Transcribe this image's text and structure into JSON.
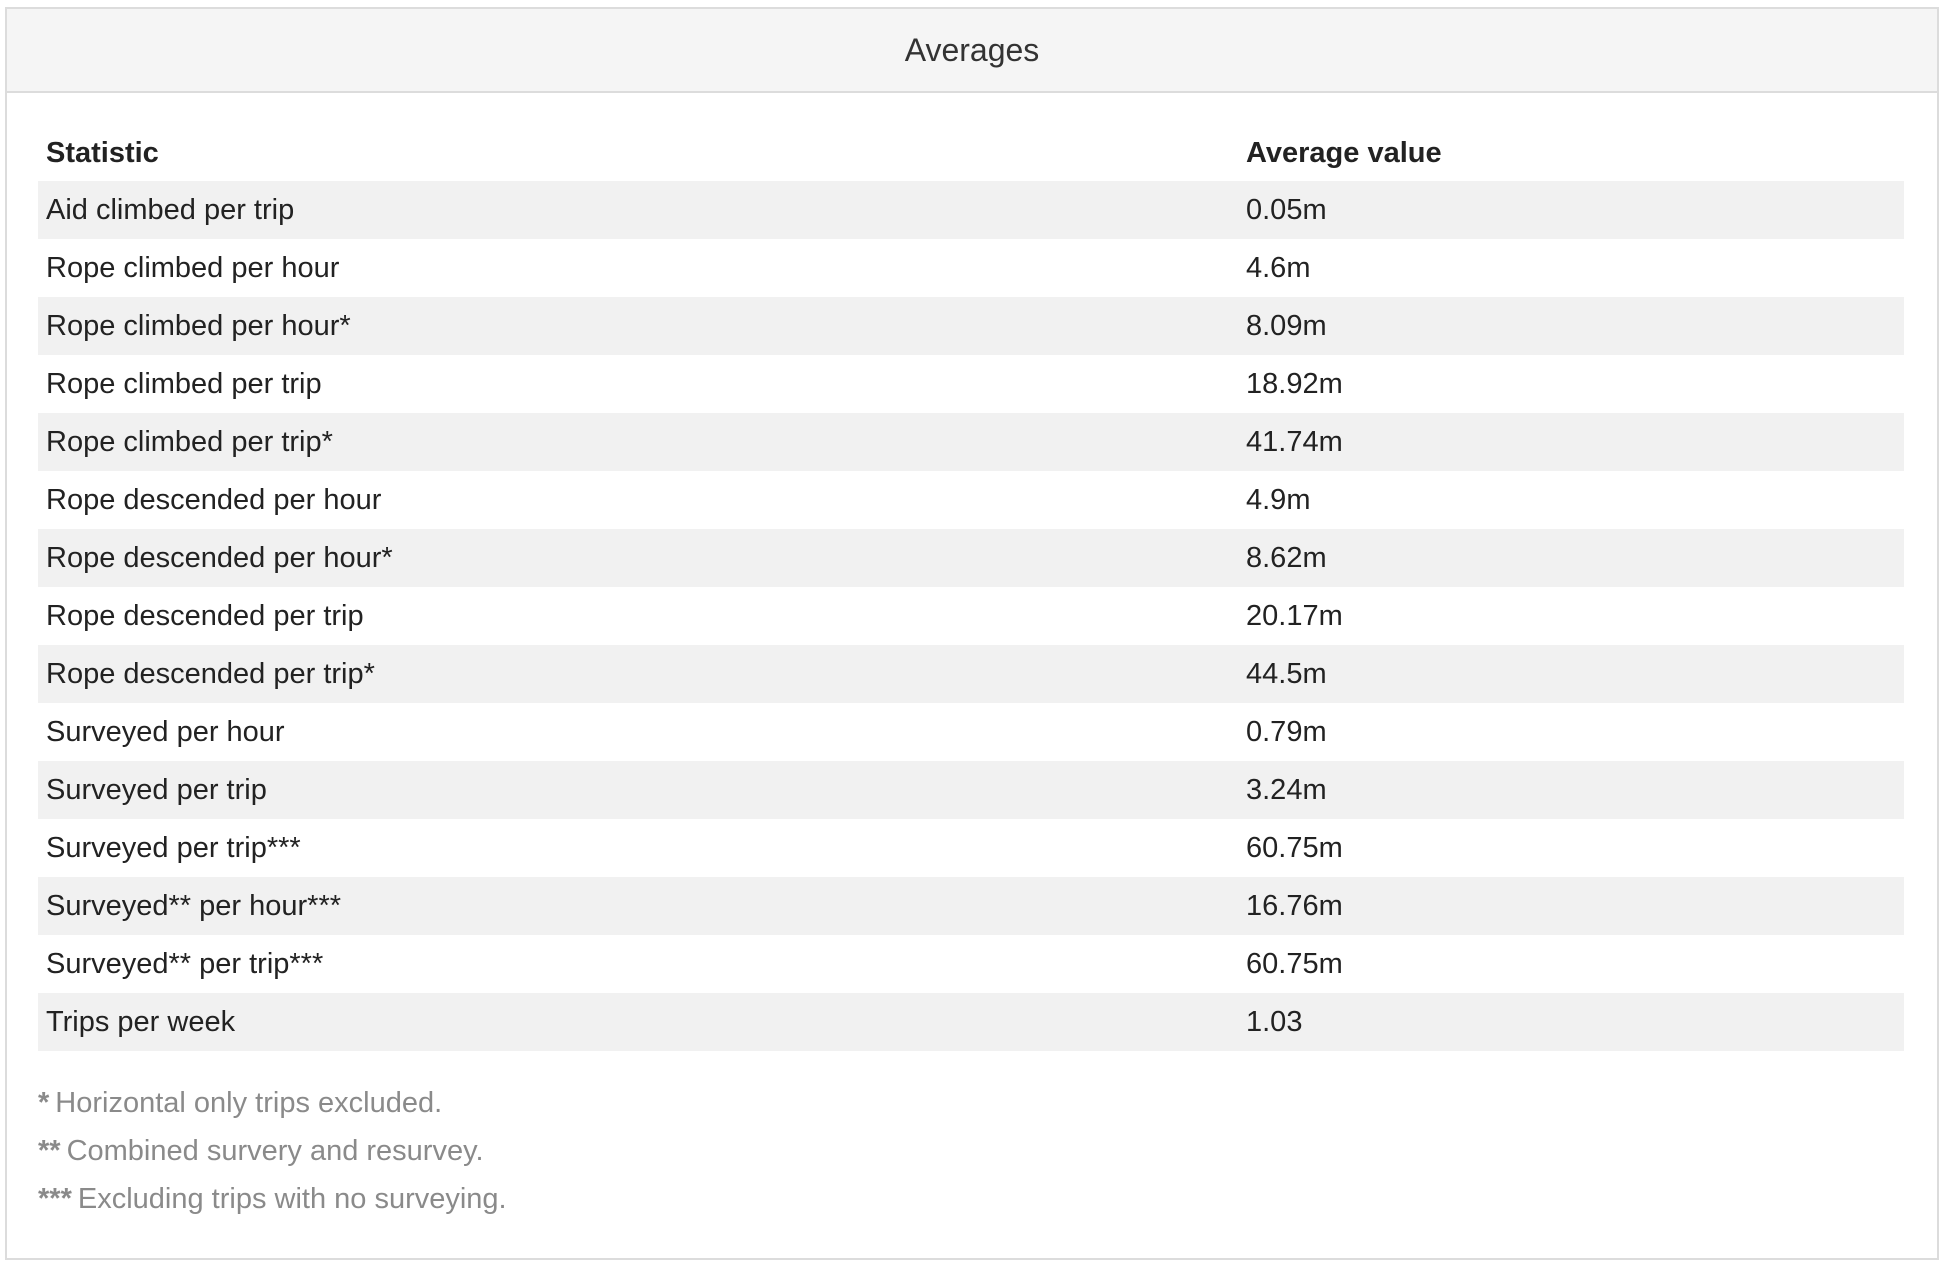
{
  "panel": {
    "title": "Averages"
  },
  "table": {
    "headers": [
      "Statistic",
      "Average value"
    ],
    "rows": [
      {
        "statistic": "Aid climbed per trip",
        "value": "0.05m"
      },
      {
        "statistic": "Rope climbed per hour",
        "value": "4.6m"
      },
      {
        "statistic": "Rope climbed per hour*",
        "value": "8.09m"
      },
      {
        "statistic": "Rope climbed per trip",
        "value": "18.92m"
      },
      {
        "statistic": "Rope climbed per trip*",
        "value": "41.74m"
      },
      {
        "statistic": "Rope descended per hour",
        "value": "4.9m"
      },
      {
        "statistic": "Rope descended per hour*",
        "value": "8.62m"
      },
      {
        "statistic": "Rope descended per trip",
        "value": "20.17m"
      },
      {
        "statistic": "Rope descended per trip*",
        "value": "44.5m"
      },
      {
        "statistic": "Surveyed per hour",
        "value": "0.79m"
      },
      {
        "statistic": "Surveyed per trip",
        "value": "3.24m"
      },
      {
        "statistic": "Surveyed per trip***",
        "value": "60.75m"
      },
      {
        "statistic": "Surveyed** per hour***",
        "value": "16.76m"
      },
      {
        "statistic": "Surveyed** per trip***",
        "value": "60.75m"
      },
      {
        "statistic": "Trips per week",
        "value": "1.03"
      }
    ]
  },
  "footnotes": [
    {
      "mark": "*",
      "text": "Horizontal only trips excluded."
    },
    {
      "mark": "**",
      "text": "Combined survery and resurvey."
    },
    {
      "mark": "***",
      "text": "Excluding trips with no surveying."
    }
  ]
}
